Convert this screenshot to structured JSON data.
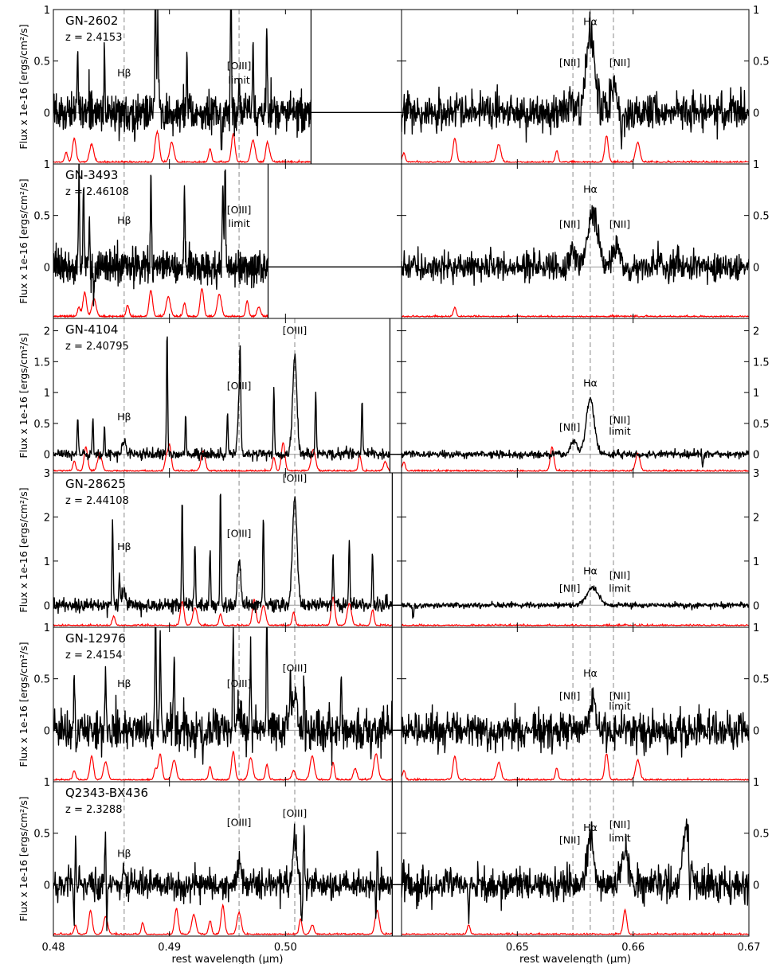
{
  "chart_data": [
    {
      "type": "line",
      "object": "GN-2602",
      "redshift": "z = 2.4153",
      "ylabel": "Flux x 1e-16 [ergs/cm²/s]",
      "ylim": [
        -0.5,
        1.0
      ],
      "left_yticks": [
        {
          "value": 0,
          "label": "0"
        },
        {
          "value": 0.5,
          "label": "0.5"
        },
        {
          "value": 1,
          "label": "1"
        }
      ],
      "right_yticks": [
        {
          "value": 0,
          "label": "0"
        },
        {
          "value": 0.5,
          "label": "0.5"
        },
        {
          "value": 1,
          "label": "1"
        }
      ],
      "bottom_edge_label": "1",
      "blue_data_end": 0.5022,
      "hb_label": "Hβ",
      "annotations_left": [
        {
          "text": "Hβ",
          "x": 0.4861,
          "y": 0.35
        },
        {
          "text": "[OIII]",
          "x": 0.496,
          "y": 0.42
        },
        {
          "text": "limit",
          "x": 0.496,
          "y": 0.28
        }
      ],
      "annotations_right": [
        {
          "text": "Hα",
          "x": 0.6563,
          "y": 0.85
        },
        {
          "text": "[NII]",
          "x": 0.6548,
          "y": 0.45
        },
        {
          "text": "[NII]",
          "x": 0.6583,
          "y": 0.45
        }
      ],
      "blue_lines": [
        {
          "x": 0.4821,
          "h": 0.65
        },
        {
          "x": 0.4844,
          "h": 0.55
        },
        {
          "x": 0.4888,
          "h": 1.2
        },
        {
          "x": 0.489,
          "h": 0.9
        },
        {
          "x": 0.4915,
          "h": 0.5
        },
        {
          "x": 0.4953,
          "h": 1.2
        },
        {
          "x": 0.496,
          "h": 0.35
        },
        {
          "x": 0.4972,
          "h": 0.7
        },
        {
          "x": 0.4984,
          "h": 0.8
        }
      ],
      "blue_dips": [
        {
          "x": 0.487,
          "h": 0.25
        },
        {
          "x": 0.4945,
          "h": 0.3
        }
      ],
      "blue_dashes": [
        0.4861,
        0.496
      ],
      "red_dashes": [
        0.6548,
        0.6563,
        0.6583
      ],
      "red_lines": [
        {
          "x": 0.6563,
          "h": 0.75,
          "w": 0.00035
        },
        {
          "x": 0.6583,
          "h": 0.25,
          "w": 0.0003
        },
        {
          "x": 0.6548,
          "h": 0.12,
          "w": 0.0003
        }
      ],
      "red_dips": [
        {
          "x": 0.659,
          "h": 0.25
        }
      ],
      "blue_sky": [
        0.4811,
        0.4818,
        0.4833,
        0.4888,
        0.489,
        0.4902,
        0.4935,
        0.4955,
        0.4972,
        0.4984,
        0.4986
      ],
      "red_sky": [
        0.6402,
        0.6446,
        0.6484,
        0.6534,
        0.6577,
        0.6604
      ],
      "noise_blue": 0.09,
      "noise_red": 0.09,
      "seed": 11
    },
    {
      "type": "line",
      "object": "GN-3493",
      "redshift": "z = 2.46108",
      "ylabel": "Flux x 1e-16 [ergs/cm²/s]",
      "ylim": [
        -0.5,
        1.0
      ],
      "left_yticks": [
        {
          "value": 0,
          "label": "0"
        },
        {
          "value": 0.5,
          "label": "0.5"
        }
      ],
      "right_yticks": [
        {
          "value": 0,
          "label": "0"
        },
        {
          "value": 0.5,
          "label": "0.5"
        }
      ],
      "blue_data_end": 0.4985,
      "annotations_left": [
        {
          "text": "Hβ",
          "x": 0.4861,
          "y": 0.42
        },
        {
          "text": "[OIII]",
          "x": 0.496,
          "y": 0.52
        },
        {
          "text": "limit",
          "x": 0.496,
          "y": 0.39
        }
      ],
      "annotations_right": [
        {
          "text": "Hα",
          "x": 0.6563,
          "y": 0.72
        },
        {
          "text": "[NII]",
          "x": 0.6548,
          "y": 0.38
        },
        {
          "text": "[NII]",
          "x": 0.6583,
          "y": 0.38
        }
      ],
      "blue_lines": [
        {
          "x": 0.4822,
          "h": 0.9
        },
        {
          "x": 0.4826,
          "h": 0.8
        },
        {
          "x": 0.4831,
          "h": 0.45
        },
        {
          "x": 0.4884,
          "h": 0.85
        },
        {
          "x": 0.4913,
          "h": 0.7
        },
        {
          "x": 0.4946,
          "h": 0.8
        },
        {
          "x": 0.4948,
          "h": 0.95
        }
      ],
      "blue_dips": [
        {
          "x": 0.4835,
          "h": 0.3
        }
      ],
      "blue_dashes": [
        0.4861,
        0.496
      ],
      "red_dashes": [
        0.6548,
        0.6563,
        0.6583
      ],
      "red_lines": [
        {
          "x": 0.6565,
          "h": 0.55,
          "w": 0.0004
        },
        {
          "x": 0.6585,
          "h": 0.22,
          "w": 0.0003
        },
        {
          "x": 0.6548,
          "h": 0.15,
          "w": 0.0003
        }
      ],
      "red_dips": [],
      "blue_sky": [
        0.4822,
        0.4827,
        0.4835,
        0.4864,
        0.4884,
        0.4899,
        0.4913,
        0.4928,
        0.4943,
        0.4967,
        0.4977
      ],
      "red_sky": [
        0.6446
      ],
      "noise_blue": 0.08,
      "noise_red": 0.07,
      "seed": 23
    },
    {
      "type": "line",
      "object": "GN-4104",
      "redshift": "z = 2.40795",
      "ylabel": "Flux x 1e-16 [ergs/cm²/s]",
      "ylim": [
        -0.3,
        2.2
      ],
      "left_yticks": [
        {
          "value": 0,
          "label": "0"
        },
        {
          "value": 0.5,
          "label": "0.5"
        },
        {
          "value": 1,
          "label": "1"
        },
        {
          "value": 1.5,
          "label": "1.5"
        },
        {
          "value": 2,
          "label": "2"
        }
      ],
      "right_yticks": [
        {
          "value": 0,
          "label": "0"
        },
        {
          "value": 0.5,
          "label": "0.5"
        },
        {
          "value": 1,
          "label": "1"
        },
        {
          "value": 1.5,
          "label": "1.5"
        },
        {
          "value": 2,
          "label": "2"
        }
      ],
      "blue_data_end": 0.509,
      "annotations_left": [
        {
          "text": "Hβ",
          "x": 0.4861,
          "y": 0.55
        },
        {
          "text": "[OIII]",
          "x": 0.496,
          "y": 1.05
        },
        {
          "text": "[OIII]",
          "x": 0.5008,
          "y": 1.95
        }
      ],
      "annotations_right": [
        {
          "text": "Hα",
          "x": 0.6563,
          "y": 1.1
        },
        {
          "text": "[NII]",
          "x": 0.6548,
          "y": 0.38
        },
        {
          "text": "[NII]",
          "x": 0.6583,
          "y": 0.5
        },
        {
          "text": "limit",
          "x": 0.6583,
          "y": 0.32
        }
      ],
      "blue_lines": [
        {
          "x": 0.496,
          "h": 0.9,
          "w": 0.00012
        },
        {
          "x": 0.5008,
          "h": 1.6,
          "w": 0.00018
        },
        {
          "x": 0.4861,
          "h": 0.22,
          "w": 0.00015
        },
        {
          "x": 0.4898,
          "h": 2.0
        },
        {
          "x": 0.4961,
          "h": 1.1
        },
        {
          "x": 0.499,
          "h": 1.1
        },
        {
          "x": 0.4821,
          "h": 0.6
        },
        {
          "x": 0.4834,
          "h": 0.6
        },
        {
          "x": 0.4844,
          "h": 0.45
        },
        {
          "x": 0.4914,
          "h": 0.65
        },
        {
          "x": 0.495,
          "h": 0.7
        },
        {
          "x": 0.5026,
          "h": 1.0
        },
        {
          "x": 0.5066,
          "h": 0.9
        }
      ],
      "blue_dips": [],
      "blue_dashes": [
        0.4861,
        0.496,
        0.5008
      ],
      "red_dashes": [
        0.6548,
        0.6563,
        0.6583
      ],
      "red_lines": [
        {
          "x": 0.6563,
          "h": 0.9,
          "w": 0.00035
        },
        {
          "x": 0.6549,
          "h": 0.22,
          "w": 0.00025
        }
      ],
      "red_dips": [
        {
          "x": 0.666,
          "h": 0.2
        }
      ],
      "blue_sky": [
        0.4818,
        0.4828,
        0.484,
        0.4897,
        0.49,
        0.4929,
        0.499,
        0.4998,
        0.5024,
        0.5064,
        0.5086
      ],
      "red_sky": [
        0.6402,
        0.653,
        0.6604
      ],
      "noise_blue": 0.04,
      "noise_red": 0.03,
      "seed": 37
    },
    {
      "type": "line",
      "object": "GN-28625",
      "redshift": "z = 2.44108",
      "ylabel": "Flux x 1e-16 [ergs/cm²/s]",
      "ylim": [
        -0.5,
        3.0
      ],
      "left_yticks": [
        {
          "value": 0,
          "label": "0"
        },
        {
          "value": 1,
          "label": "1"
        },
        {
          "value": 2,
          "label": "2"
        },
        {
          "value": 3,
          "label": "3"
        }
      ],
      "right_yticks": [
        {
          "value": 0,
          "label": "0"
        },
        {
          "value": 1,
          "label": "1"
        },
        {
          "value": 2,
          "label": "2"
        },
        {
          "value": 3,
          "label": "3"
        }
      ],
      "blue_data_end": 0.5092,
      "annotations_left": [
        {
          "text": "Hβ",
          "x": 0.4861,
          "y": 1.25
        },
        {
          "text": "[OIII]",
          "x": 0.496,
          "y": 1.55
        },
        {
          "text": "[OIII]",
          "x": 0.5008,
          "y": 2.8
        }
      ],
      "annotations_right": [
        {
          "text": "Hα",
          "x": 0.6563,
          "y": 0.7
        },
        {
          "text": "[NII]",
          "x": 0.6548,
          "y": 0.3
        },
        {
          "text": "[NII]",
          "x": 0.6583,
          "y": 0.6
        },
        {
          "text": "limit",
          "x": 0.6583,
          "y": 0.3
        }
      ],
      "blue_lines": [
        {
          "x": 0.496,
          "h": 1.0,
          "w": 0.00015
        },
        {
          "x": 0.5008,
          "h": 2.4,
          "w": 0.0002
        },
        {
          "x": 0.4861,
          "h": 0.35,
          "w": 0.00015
        },
        {
          "x": 0.4851,
          "h": 1.9
        },
        {
          "x": 0.4911,
          "h": 2.5
        },
        {
          "x": 0.4922,
          "h": 1.5
        },
        {
          "x": 0.4944,
          "h": 2.6
        },
        {
          "x": 0.4935,
          "h": 1.3
        },
        {
          "x": 0.4981,
          "h": 2.1
        },
        {
          "x": 0.5041,
          "h": 1.2
        },
        {
          "x": 0.5055,
          "h": 1.5
        },
        {
          "x": 0.5075,
          "h": 1.3
        },
        {
          "x": 0.4857,
          "h": 0.7
        }
      ],
      "blue_dips": [],
      "blue_dashes": [
        0.4861,
        0.496,
        0.5008
      ],
      "red_dashes": [
        0.6548,
        0.6563,
        0.6583
      ],
      "red_lines": [
        {
          "x": 0.6565,
          "h": 0.4,
          "w": 0.0005
        }
      ],
      "red_dips": [
        {
          "x": 0.641,
          "h": 0.3
        }
      ],
      "blue_sky": [
        0.4852,
        0.4911,
        0.4922,
        0.4944,
        0.4973,
        0.4981,
        0.5007,
        0.5041,
        0.5055,
        0.5075
      ],
      "red_sky": [],
      "noise_blue": 0.08,
      "noise_red": 0.03,
      "seed": 53
    },
    {
      "type": "line",
      "object": "GN-12976",
      "redshift": "z = 2.4154",
      "ylabel": "Flux x 1e-16 [ergs/cm²/s]",
      "ylim": [
        -0.5,
        1.0
      ],
      "left_yticks": [
        {
          "value": 0,
          "label": "0"
        },
        {
          "value": 0.5,
          "label": "0.5"
        },
        {
          "value": 1,
          "label": "1"
        }
      ],
      "right_yticks": [
        {
          "value": 0,
          "label": "0"
        },
        {
          "value": 0.5,
          "label": "0.5"
        },
        {
          "value": 1,
          "label": "1"
        }
      ],
      "bottom_edge_label": "1",
      "blue_data_end": 0.5092,
      "annotations_left": [
        {
          "text": "Hβ",
          "x": 0.4861,
          "y": 0.42
        },
        {
          "text": "[OIII]",
          "x": 0.496,
          "y": 0.42
        },
        {
          "text": "[OIII]",
          "x": 0.5008,
          "y": 0.57
        }
      ],
      "annotations_right": [
        {
          "text": "Hα",
          "x": 0.6563,
          "y": 0.52
        },
        {
          "text": "[NII]",
          "x": 0.6548,
          "y": 0.3
        },
        {
          "text": "[NII]",
          "x": 0.6583,
          "y": 0.3
        },
        {
          "text": "limit",
          "x": 0.6583,
          "y": 0.2
        }
      ],
      "blue_lines": [
        {
          "x": 0.5008,
          "h": 0.4,
          "w": 0.0002
        },
        {
          "x": 0.496,
          "h": 0.2,
          "w": 0.00015
        },
        {
          "x": 0.4818,
          "h": 0.6
        },
        {
          "x": 0.4845,
          "h": 0.6
        },
        {
          "x": 0.4888,
          "h": 1.2
        },
        {
          "x": 0.4892,
          "h": 0.95
        },
        {
          "x": 0.4904,
          "h": 0.8
        },
        {
          "x": 0.4955,
          "h": 1.2
        },
        {
          "x": 0.497,
          "h": 0.7
        },
        {
          "x": 0.4984,
          "h": 1.2
        },
        {
          "x": 0.5004,
          "h": 0.5
        },
        {
          "x": 0.5016,
          "h": 0.5
        },
        {
          "x": 0.5048,
          "h": 0.5
        }
      ],
      "blue_dips": [
        {
          "x": 0.4929,
          "h": 0.35
        }
      ],
      "blue_dashes": [
        0.4861,
        0.496,
        0.5008
      ],
      "red_dashes": [
        0.6548,
        0.6563,
        0.6583
      ],
      "red_lines": [
        {
          "x": 0.6565,
          "h": 0.3,
          "w": 0.0003
        }
      ],
      "red_dips": [],
      "blue_sky": [
        0.4818,
        0.4833,
        0.4845,
        0.4888,
        0.4892,
        0.4904,
        0.4935,
        0.4955,
        0.497,
        0.4984,
        0.5007,
        0.5023,
        0.5041,
        0.506,
        0.5078
      ],
      "red_sky": [
        0.6402,
        0.6446,
        0.6484,
        0.6534,
        0.6577,
        0.6604
      ],
      "noise_blue": 0.1,
      "noise_red": 0.09,
      "seed": 71
    },
    {
      "type": "line",
      "object": "Q2343-BX436",
      "redshift": "z = 2.3288",
      "ylabel": "Flux x 1e-16 [ergs/cm²/s]",
      "ylim": [
        -0.5,
        1.0
      ],
      "left_yticks": [
        {
          "value": 0,
          "label": "0"
        },
        {
          "value": 0.5,
          "label": "0.5"
        }
      ],
      "right_yticks": [
        {
          "value": 0,
          "label": "0"
        },
        {
          "value": 0.5,
          "label": "0.5"
        }
      ],
      "blue_data_end": 0.5092,
      "annotations_left": [
        {
          "text": "Hβ",
          "x": 0.4861,
          "y": 0.27
        },
        {
          "text": "[OIII]",
          "x": 0.496,
          "y": 0.57
        },
        {
          "text": "[OIII]",
          "x": 0.5008,
          "y": 0.66
        }
      ],
      "annotations_right": [
        {
          "text": "Hα",
          "x": 0.6563,
          "y": 0.52
        },
        {
          "text": "[NII]",
          "x": 0.6548,
          "y": 0.4
        },
        {
          "text": "[NII]",
          "x": 0.6583,
          "y": 0.55
        },
        {
          "text": "limit",
          "x": 0.6583,
          "y": 0.42
        }
      ],
      "blue_lines": [
        {
          "x": 0.5008,
          "h": 0.45,
          "w": 0.00018
        },
        {
          "x": 0.496,
          "h": 0.3,
          "w": 0.00013
        },
        {
          "x": 0.4861,
          "h": 0.15,
          "w": 0.00015
        },
        {
          "x": 0.4819,
          "h": 0.55
        },
        {
          "x": 0.4845,
          "h": 0.5
        },
        {
          "x": 0.5016,
          "h": 0.5
        },
        {
          "x": 0.5079,
          "h": 0.4
        }
      ],
      "blue_dips": [
        {
          "x": 0.4818,
          "h": 0.4
        },
        {
          "x": 0.4846,
          "h": 0.4
        },
        {
          "x": 0.5014,
          "h": 0.4
        },
        {
          "x": 0.5078,
          "h": 0.35
        }
      ],
      "blue_dashes": [
        0.4861,
        0.496,
        0.5008
      ],
      "red_dashes": [
        0.6548,
        0.6563,
        0.6583
      ],
      "red_lines": [
        {
          "x": 0.6563,
          "h": 0.45,
          "w": 0.0003
        },
        {
          "x": 0.6593,
          "h": 0.35,
          "w": 0.0003
        },
        {
          "x": 0.6646,
          "h": 0.5,
          "w": 0.0003
        }
      ],
      "red_dips": [
        {
          "x": 0.6649,
          "h": 0.45
        },
        {
          "x": 0.6458,
          "h": 0.3
        }
      ],
      "blue_sky": [
        0.4819,
        0.4832,
        0.4845,
        0.4877,
        0.4906,
        0.4921,
        0.4935,
        0.4946,
        0.496,
        0.5013,
        0.5023,
        0.5079
      ],
      "red_sky": [
        0.6458,
        0.6593
      ],
      "noise_blue": 0.07,
      "noise_red": 0.08,
      "seed": 97
    }
  ],
  "axes": {
    "blue_xlim": [
      0.48,
      0.51
    ],
    "red_xlim": [
      0.64,
      0.67
    ],
    "blue_xticks": [
      {
        "value": 0.48,
        "label": "0.48"
      },
      {
        "value": 0.49,
        "label": "0.49"
      },
      {
        "value": 0.5,
        "label": "0.50"
      }
    ],
    "red_xticks": [
      {
        "value": 0.65,
        "label": "0.65"
      },
      {
        "value": 0.66,
        "label": "0.66"
      },
      {
        "value": 0.67,
        "label": "0.67"
      }
    ],
    "xlabel": "rest wavelength (μm)",
    "colors": {
      "spectrum": "#000000",
      "sky": "#ff0000",
      "dashes": "#8a8a8a",
      "zero": "#9a9a9a"
    }
  }
}
